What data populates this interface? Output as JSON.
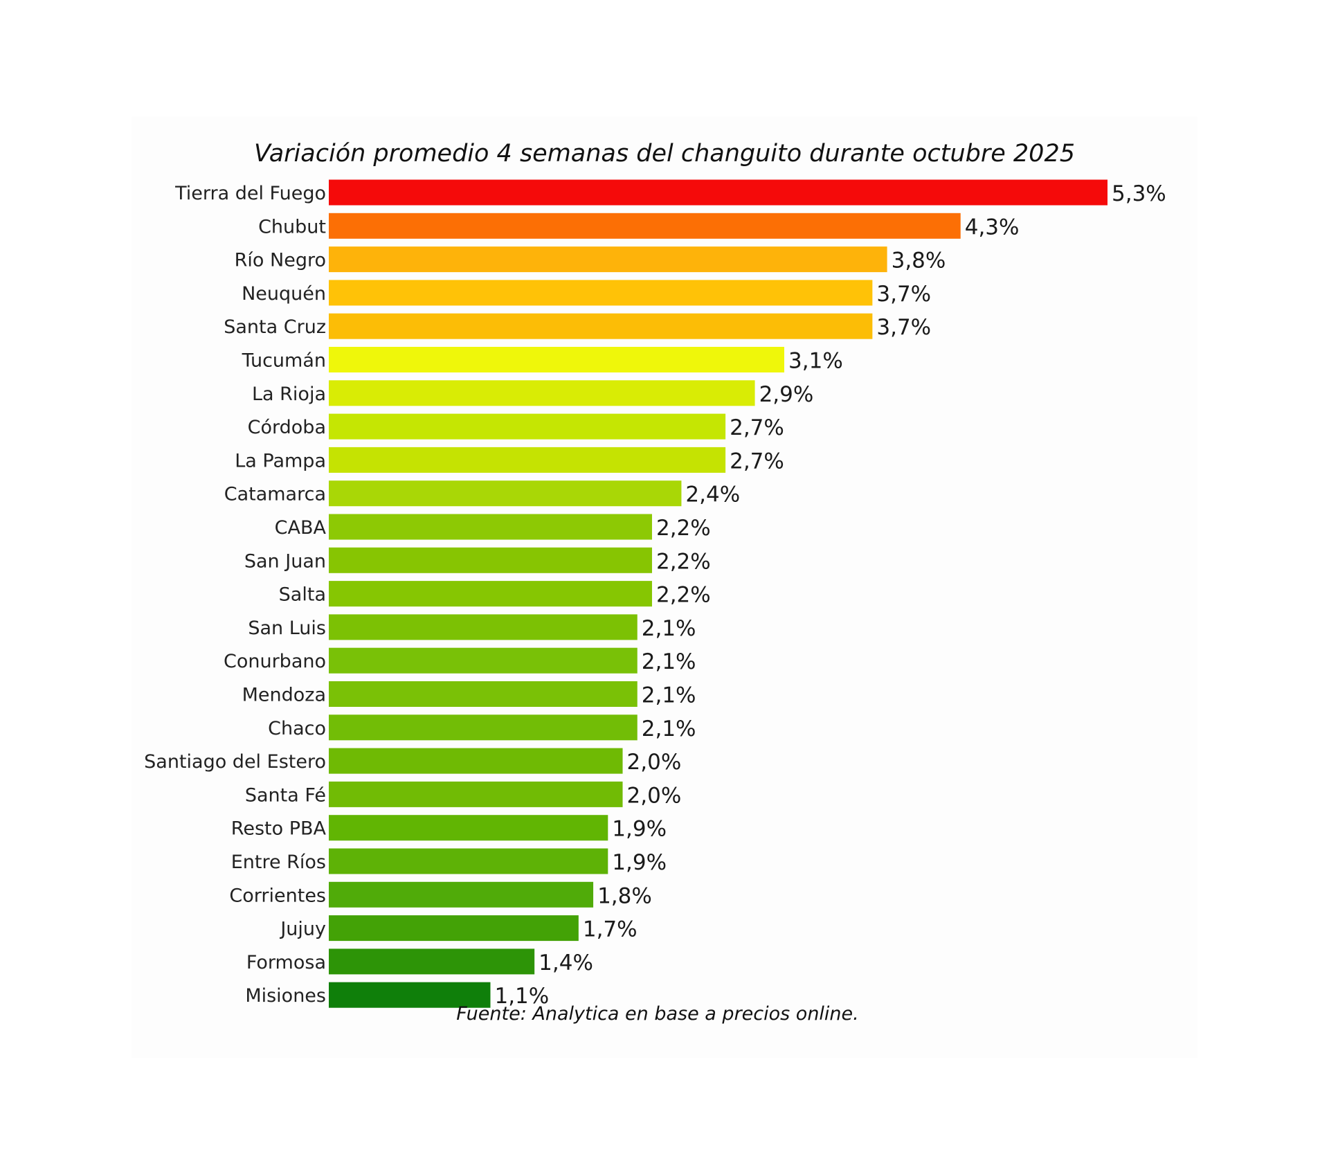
{
  "chart_data": {
    "type": "bar",
    "orientation": "horizontal",
    "title": "Variación promedio 4 semanas del changuito durante octubre 2025",
    "source": "Fuente: Analytica en base a precios online.",
    "value_suffix": "%",
    "xlim": [
      0,
      5.3
    ],
    "grid": false,
    "legend": "none",
    "categories": [
      "Tierra del Fuego",
      "Chubut",
      "Río Negro",
      "Neuquén",
      "Santa Cruz",
      "Tucumán",
      "La Rioja",
      "Córdoba",
      "La Pampa",
      "Catamarca",
      "CABA",
      "San Juan",
      "Salta",
      "San Luis",
      "Conurbano",
      "Mendoza",
      "Chaco",
      "Santiago del Estero",
      "Santa Fé",
      "Resto PBA",
      "Entre Ríos",
      "Corrientes",
      "Jujuy",
      "Formosa",
      "Misiones"
    ],
    "values": [
      5.3,
      4.3,
      3.8,
      3.7,
      3.7,
      3.1,
      2.9,
      2.7,
      2.7,
      2.4,
      2.2,
      2.2,
      2.2,
      2.1,
      2.1,
      2.1,
      2.1,
      2.0,
      2.0,
      1.9,
      1.9,
      1.8,
      1.7,
      1.4,
      1.1
    ],
    "value_labels": [
      "5,3%",
      "4,3%",
      "3,8%",
      "3,7%",
      "3,7%",
      "3,1%",
      "2,9%",
      "2,7%",
      "2,7%",
      "2,4%",
      "2,2%",
      "2,2%",
      "2,2%",
      "2,1%",
      "2,1%",
      "2,1%",
      "2,1%",
      "2,0%",
      "2,0%",
      "1,9%",
      "1,9%",
      "1,8%",
      "1,7%",
      "1,4%",
      "1,1%"
    ],
    "colors": [
      "#f50a0a",
      "#fc6f05",
      "#feb30a",
      "#ffc207",
      "#fcbd06",
      "#eff70a",
      "#d9ec05",
      "#c5e603",
      "#c5e302",
      "#a9d706",
      "#8dc904",
      "#87c502",
      "#86c602",
      "#7cc104",
      "#79c107",
      "#7ac106",
      "#72bd06",
      "#6fba04",
      "#71bb05",
      "#61b503",
      "#5eb206",
      "#50ab09",
      "#43a206",
      "#2d9407",
      "#0f7f0a"
    ]
  }
}
